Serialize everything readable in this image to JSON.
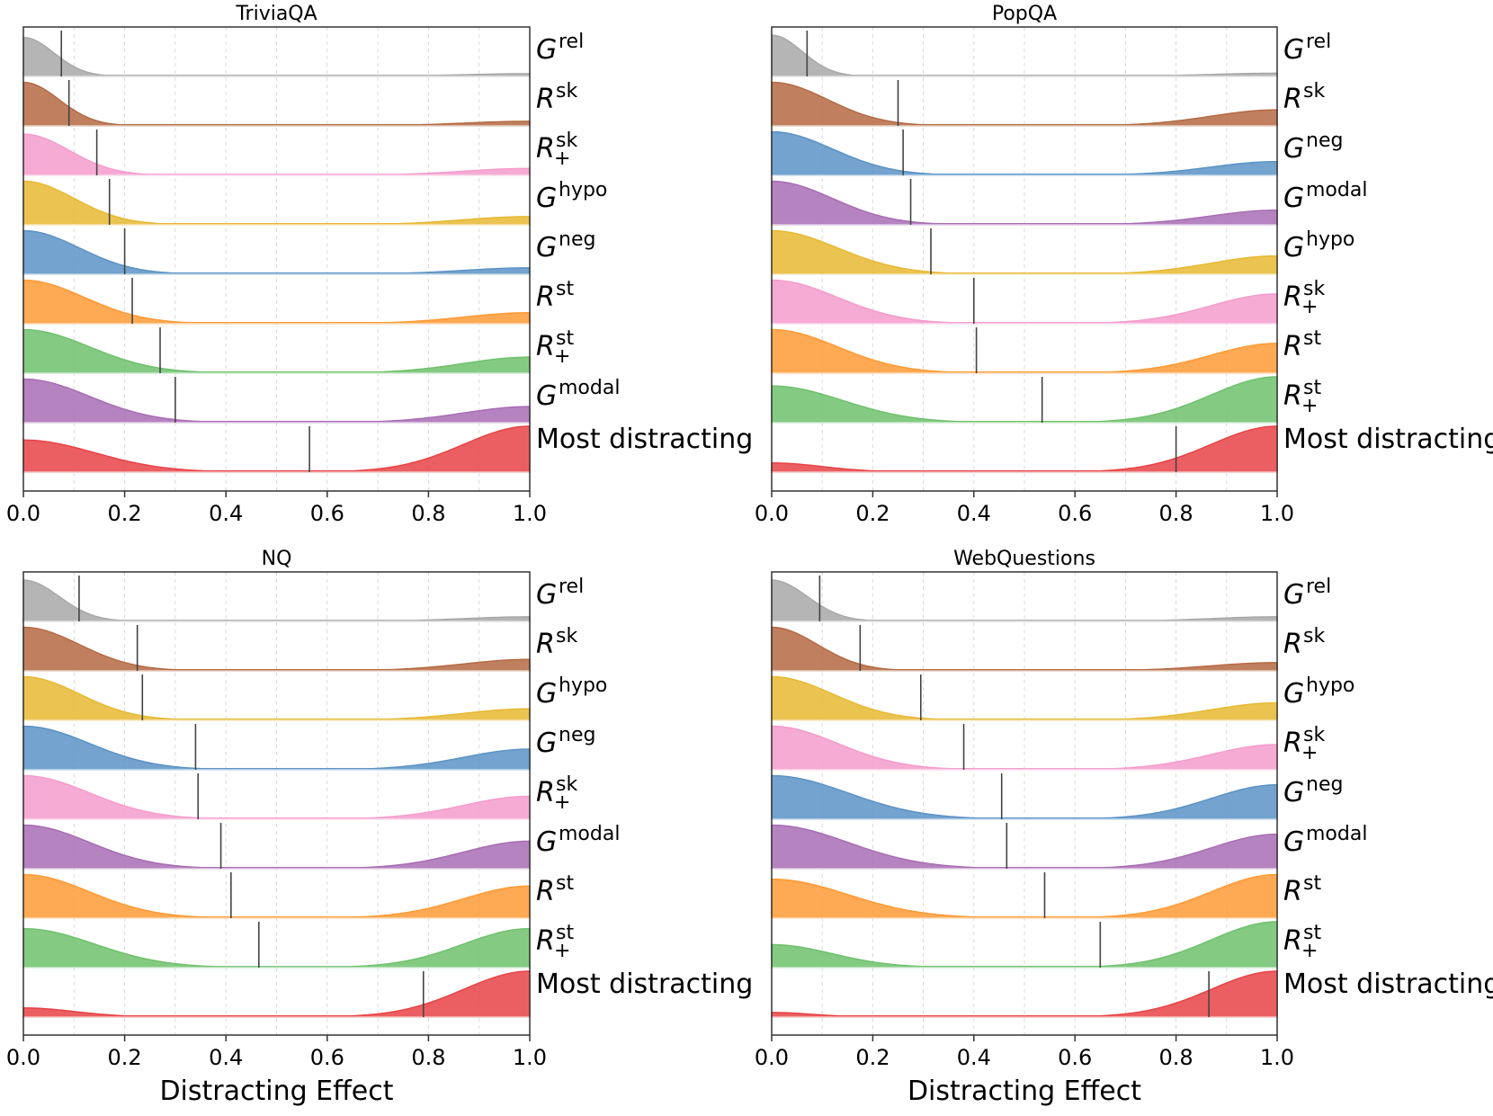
{
  "chart_data": [
    {
      "type": "ridgeline",
      "title": "TriviaQA",
      "xlabel": "",
      "xlim": [
        0,
        1
      ],
      "xticks": [
        "0.0",
        "0.2",
        "0.4",
        "0.6",
        "0.8",
        "1.0"
      ],
      "rows": [
        {
          "base": "G",
          "sup": "rel",
          "sub": "",
          "label": "",
          "color": "#a8a8a8",
          "mean": 0.075,
          "peak0": 0.85,
          "width0": 0.06,
          "peak1": 0.06
        },
        {
          "base": "R",
          "sup": "sk",
          "sub": "",
          "label": "",
          "color": "#b56a44",
          "mean": 0.09,
          "peak0": 0.95,
          "width0": 0.07,
          "peak1": 0.1
        },
        {
          "base": "R",
          "sup": "sk",
          "sub": "+",
          "label": "",
          "color": "#f59ccd",
          "mean": 0.145,
          "peak0": 0.9,
          "width0": 0.09,
          "peak1": 0.15
        },
        {
          "base": "G",
          "sup": "hypo",
          "sub": "",
          "label": "",
          "color": "#e7b932",
          "mean": 0.17,
          "peak0": 0.95,
          "width0": 0.1,
          "peak1": 0.18
        },
        {
          "base": "G",
          "sup": "neg",
          "sub": "",
          "label": "",
          "color": "#5b93c5",
          "mean": 0.2,
          "peak0": 0.95,
          "width0": 0.11,
          "peak1": 0.14
        },
        {
          "base": "R",
          "sup": "st",
          "sub": "",
          "label": "",
          "color": "#fe9a35",
          "mean": 0.215,
          "peak0": 0.95,
          "width0": 0.12,
          "peak1": 0.24
        },
        {
          "base": "R",
          "sup": "st",
          "sub": "+",
          "label": "",
          "color": "#6fc16d",
          "mean": 0.27,
          "peak0": 0.95,
          "width0": 0.13,
          "peak1": 0.35
        },
        {
          "base": "G",
          "sup": "modal",
          "sub": "",
          "label": "",
          "color": "#a86db4",
          "mean": 0.3,
          "peak0": 0.95,
          "width0": 0.13,
          "peak1": 0.35
        },
        {
          "base": "",
          "sup": "",
          "sub": "",
          "label": "Most distracting",
          "color": "#e84346",
          "mean": 0.565,
          "peak0": 0.7,
          "width0": 0.14,
          "peak1": 1.0
        }
      ]
    },
    {
      "type": "ridgeline",
      "title": "PopQA",
      "xlabel": "",
      "xlim": [
        0,
        1
      ],
      "xticks": [
        "0.0",
        "0.2",
        "0.4",
        "0.6",
        "0.8",
        "1.0"
      ],
      "rows": [
        {
          "base": "G",
          "sup": "rel",
          "sub": "",
          "label": "",
          "color": "#a8a8a8",
          "mean": 0.07,
          "peak0": 0.9,
          "width0": 0.06,
          "peak1": 0.07
        },
        {
          "base": "R",
          "sup": "sk",
          "sub": "",
          "label": "",
          "color": "#b56a44",
          "mean": 0.25,
          "peak0": 0.95,
          "width0": 0.11,
          "peak1": 0.35
        },
        {
          "base": "G",
          "sup": "neg",
          "sub": "",
          "label": "",
          "color": "#5b93c5",
          "mean": 0.26,
          "peak0": 0.95,
          "width0": 0.12,
          "peak1": 0.3
        },
        {
          "base": "G",
          "sup": "modal",
          "sub": "",
          "label": "",
          "color": "#a86db4",
          "mean": 0.275,
          "peak0": 0.95,
          "width0": 0.12,
          "peak1": 0.32
        },
        {
          "base": "G",
          "sup": "hypo",
          "sub": "",
          "label": "",
          "color": "#e7b932",
          "mean": 0.315,
          "peak0": 0.95,
          "width0": 0.13,
          "peak1": 0.4
        },
        {
          "base": "R",
          "sup": "sk",
          "sub": "+",
          "label": "",
          "color": "#f59ccd",
          "mean": 0.4,
          "peak0": 0.95,
          "width0": 0.13,
          "peak1": 0.65
        },
        {
          "base": "R",
          "sup": "st",
          "sub": "",
          "label": "",
          "color": "#fe9a35",
          "mean": 0.405,
          "peak0": 0.95,
          "width0": 0.13,
          "peak1": 0.65
        },
        {
          "base": "R",
          "sup": "st",
          "sub": "+",
          "label": "",
          "color": "#6fc16d",
          "mean": 0.535,
          "peak0": 0.8,
          "width0": 0.14,
          "peak1": 1.0
        },
        {
          "base": "",
          "sup": "",
          "sub": "",
          "label": "Most distracting",
          "color": "#e84346",
          "mean": 0.8,
          "peak0": 0.2,
          "width0": 0.1,
          "peak1": 1.0
        }
      ]
    },
    {
      "type": "ridgeline",
      "title": "NQ",
      "xlabel": "Distracting Effect",
      "xlim": [
        0,
        1
      ],
      "xticks": [
        "0.0",
        "0.2",
        "0.4",
        "0.6",
        "0.8",
        "1.0"
      ],
      "rows": [
        {
          "base": "G",
          "sup": "rel",
          "sub": "",
          "label": "",
          "color": "#a8a8a8",
          "mean": 0.11,
          "peak0": 0.9,
          "width0": 0.07,
          "peak1": 0.1
        },
        {
          "base": "R",
          "sup": "sk",
          "sub": "",
          "label": "",
          "color": "#b56a44",
          "mean": 0.225,
          "peak0": 0.95,
          "width0": 0.11,
          "peak1": 0.25
        },
        {
          "base": "G",
          "sup": "hypo",
          "sub": "",
          "label": "",
          "color": "#e7b932",
          "mean": 0.235,
          "peak0": 0.95,
          "width0": 0.11,
          "peak1": 0.25
        },
        {
          "base": "G",
          "sup": "neg",
          "sub": "",
          "label": "",
          "color": "#5b93c5",
          "mean": 0.34,
          "peak0": 0.95,
          "width0": 0.13,
          "peak1": 0.45
        },
        {
          "base": "R",
          "sup": "sk",
          "sub": "+",
          "label": "",
          "color": "#f59ccd",
          "mean": 0.345,
          "peak0": 0.95,
          "width0": 0.13,
          "peak1": 0.5
        },
        {
          "base": "G",
          "sup": "modal",
          "sub": "",
          "label": "",
          "color": "#a86db4",
          "mean": 0.39,
          "peak0": 0.95,
          "width0": 0.13,
          "peak1": 0.6
        },
        {
          "base": "R",
          "sup": "st",
          "sub": "",
          "label": "",
          "color": "#fe9a35",
          "mean": 0.41,
          "peak0": 0.95,
          "width0": 0.13,
          "peak1": 0.7
        },
        {
          "base": "R",
          "sup": "st",
          "sub": "+",
          "label": "",
          "color": "#6fc16d",
          "mean": 0.465,
          "peak0": 0.85,
          "width0": 0.14,
          "peak1": 0.85
        },
        {
          "base": "",
          "sup": "",
          "sub": "",
          "label": "Most distracting",
          "color": "#e84346",
          "mean": 0.79,
          "peak0": 0.2,
          "width0": 0.1,
          "peak1": 1.0
        }
      ]
    },
    {
      "type": "ridgeline",
      "title": "WebQuestions",
      "xlabel": "Distracting Effect",
      "xlim": [
        0,
        1
      ],
      "xticks": [
        "0.0",
        "0.2",
        "0.4",
        "0.6",
        "0.8",
        "1.0"
      ],
      "rows": [
        {
          "base": "G",
          "sup": "rel",
          "sub": "",
          "label": "",
          "color": "#a8a8a8",
          "mean": 0.095,
          "peak0": 0.9,
          "width0": 0.07,
          "peak1": 0.1
        },
        {
          "base": "R",
          "sup": "sk",
          "sub": "",
          "label": "",
          "color": "#b56a44",
          "mean": 0.175,
          "peak0": 0.95,
          "width0": 0.09,
          "peak1": 0.18
        },
        {
          "base": "G",
          "sup": "hypo",
          "sub": "",
          "label": "",
          "color": "#e7b932",
          "mean": 0.295,
          "peak0": 0.95,
          "width0": 0.12,
          "peak1": 0.38
        },
        {
          "base": "R",
          "sup": "sk",
          "sub": "+",
          "label": "",
          "color": "#f59ccd",
          "mean": 0.38,
          "peak0": 0.95,
          "width0": 0.13,
          "peak1": 0.55
        },
        {
          "base": "G",
          "sup": "neg",
          "sub": "",
          "label": "",
          "color": "#5b93c5",
          "mean": 0.455,
          "peak0": 0.95,
          "width0": 0.15,
          "peak1": 0.75
        },
        {
          "base": "G",
          "sup": "modal",
          "sub": "",
          "label": "",
          "color": "#a86db4",
          "mean": 0.465,
          "peak0": 0.95,
          "width0": 0.15,
          "peak1": 0.75
        },
        {
          "base": "R",
          "sup": "st",
          "sub": "",
          "label": "",
          "color": "#fe9a35",
          "mean": 0.54,
          "peak0": 0.85,
          "width0": 0.15,
          "peak1": 0.95
        },
        {
          "base": "R",
          "sup": "st",
          "sub": "+",
          "label": "",
          "color": "#6fc16d",
          "mean": 0.65,
          "peak0": 0.5,
          "width0": 0.12,
          "peak1": 1.0
        },
        {
          "base": "",
          "sup": "",
          "sub": "",
          "label": "Most distracting",
          "color": "#e84346",
          "mean": 0.865,
          "peak0": 0.1,
          "width0": 0.08,
          "peak1": 1.0
        }
      ]
    }
  ]
}
